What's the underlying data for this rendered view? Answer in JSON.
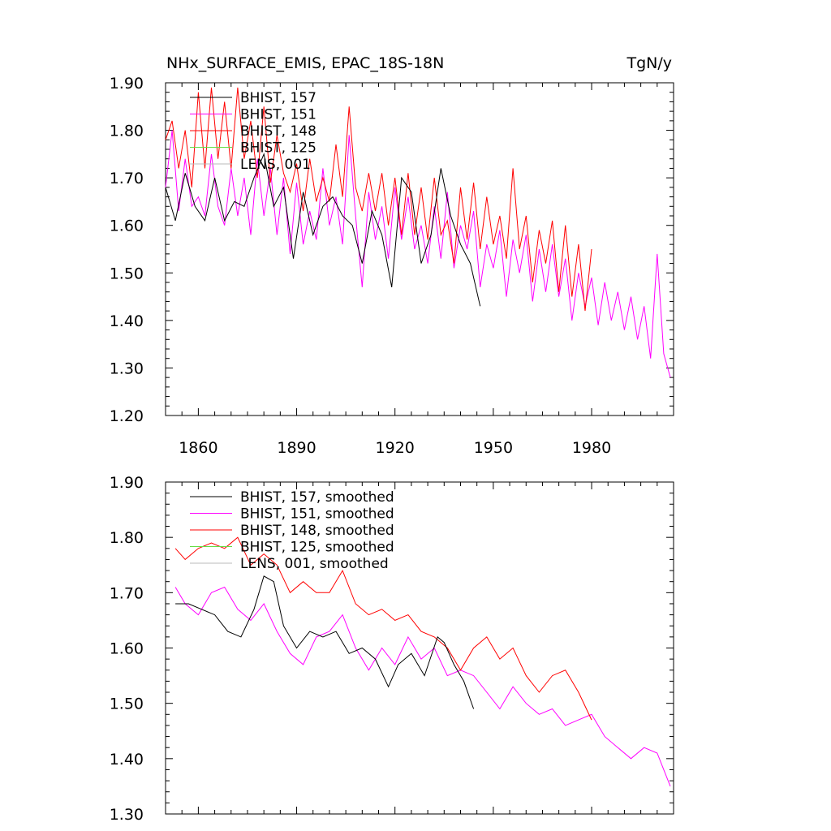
{
  "chart_data": [
    {
      "type": "line",
      "title": "NHx_SURFACE_EMIS, EPAC_18S-18N",
      "units": "TgN/y",
      "xlabel": "",
      "ylabel": "",
      "xlim": [
        1850,
        2005
      ],
      "ylim": [
        1.2,
        1.9
      ],
      "x_ticks": [
        1860,
        1890,
        1920,
        1950,
        1980
      ],
      "y_ticks": [
        1.2,
        1.3,
        1.4,
        1.5,
        1.6,
        1.7,
        1.8,
        1.9
      ],
      "y_tick_labels": [
        "1.20",
        "1.30",
        "1.40",
        "1.50",
        "1.60",
        "1.70",
        "1.80",
        "1.90"
      ],
      "legend_position": "top-left",
      "grid": false,
      "series": [
        {
          "name": "BHIST, 157",
          "color": "#000000",
          "x": [
            1850,
            1853,
            1856,
            1859,
            1862,
            1865,
            1868,
            1871,
            1874,
            1877,
            1880,
            1883,
            1886,
            1889,
            1892,
            1895,
            1898,
            1901,
            1904,
            1907,
            1910,
            1913,
            1916,
            1919,
            1922,
            1925,
            1928,
            1931,
            1934,
            1937,
            1940,
            1943,
            1946
          ],
          "values": [
            1.68,
            1.61,
            1.71,
            1.64,
            1.61,
            1.7,
            1.61,
            1.65,
            1.64,
            1.7,
            1.75,
            1.64,
            1.68,
            1.53,
            1.67,
            1.58,
            1.64,
            1.66,
            1.62,
            1.6,
            1.52,
            1.63,
            1.58,
            1.47,
            1.7,
            1.67,
            1.52,
            1.58,
            1.72,
            1.62,
            1.56,
            1.52,
            1.43
          ]
        },
        {
          "name": "BHIST, 151",
          "color": "#ff00ff",
          "x": [
            1850,
            1852,
            1854,
            1856,
            1858,
            1860,
            1862,
            1864,
            1866,
            1868,
            1870,
            1872,
            1874,
            1876,
            1878,
            1880,
            1882,
            1884,
            1886,
            1888,
            1890,
            1892,
            1894,
            1896,
            1898,
            1900,
            1902,
            1904,
            1906,
            1908,
            1910,
            1912,
            1914,
            1916,
            1918,
            1920,
            1922,
            1924,
            1926,
            1928,
            1930,
            1932,
            1934,
            1936,
            1938,
            1940,
            1942,
            1944,
            1946,
            1948,
            1950,
            1952,
            1954,
            1956,
            1958,
            1960,
            1962,
            1964,
            1966,
            1968,
            1970,
            1972,
            1974,
            1976,
            1978,
            1980,
            1982,
            1984,
            1986,
            1988,
            1990,
            1992,
            1994,
            1996,
            1998,
            2000,
            2002,
            2004
          ],
          "values": [
            1.68,
            1.8,
            1.63,
            1.74,
            1.64,
            1.66,
            1.62,
            1.75,
            1.64,
            1.6,
            1.72,
            1.62,
            1.7,
            1.58,
            1.74,
            1.62,
            1.72,
            1.58,
            1.7,
            1.54,
            1.69,
            1.56,
            1.63,
            1.57,
            1.72,
            1.6,
            1.66,
            1.56,
            1.79,
            1.62,
            1.47,
            1.67,
            1.57,
            1.64,
            1.53,
            1.68,
            1.57,
            1.66,
            1.55,
            1.6,
            1.52,
            1.64,
            1.53,
            1.67,
            1.51,
            1.6,
            1.55,
            1.63,
            1.47,
            1.56,
            1.51,
            1.59,
            1.45,
            1.57,
            1.5,
            1.58,
            1.44,
            1.55,
            1.46,
            1.56,
            1.45,
            1.53,
            1.4,
            1.5,
            1.43,
            1.49,
            1.39,
            1.48,
            1.4,
            1.46,
            1.38,
            1.45,
            1.36,
            1.43,
            1.32,
            1.54,
            1.33,
            1.28
          ]
        },
        {
          "name": "BHIST, 148",
          "color": "#ff0000",
          "x": [
            1850,
            1852,
            1854,
            1856,
            1858,
            1860,
            1862,
            1864,
            1866,
            1868,
            1870,
            1872,
            1874,
            1876,
            1878,
            1880,
            1882,
            1884,
            1886,
            1888,
            1890,
            1892,
            1894,
            1896,
            1898,
            1900,
            1902,
            1904,
            1906,
            1908,
            1910,
            1912,
            1914,
            1916,
            1918,
            1920,
            1922,
            1924,
            1926,
            1928,
            1930,
            1932,
            1934,
            1936,
            1938,
            1940,
            1942,
            1944,
            1946,
            1948,
            1950,
            1952,
            1954,
            1956,
            1958,
            1960,
            1962,
            1964,
            1966,
            1968,
            1970,
            1972,
            1974,
            1976,
            1978,
            1980
          ],
          "values": [
            1.78,
            1.82,
            1.72,
            1.8,
            1.68,
            1.88,
            1.72,
            1.89,
            1.74,
            1.86,
            1.72,
            1.89,
            1.74,
            1.82,
            1.7,
            1.85,
            1.69,
            1.79,
            1.71,
            1.67,
            1.73,
            1.63,
            1.74,
            1.65,
            1.7,
            1.65,
            1.77,
            1.66,
            1.85,
            1.68,
            1.63,
            1.71,
            1.63,
            1.71,
            1.6,
            1.7,
            1.58,
            1.71,
            1.58,
            1.68,
            1.57,
            1.7,
            1.58,
            1.61,
            1.52,
            1.68,
            1.57,
            1.69,
            1.55,
            1.66,
            1.56,
            1.62,
            1.53,
            1.72,
            1.55,
            1.62,
            1.48,
            1.59,
            1.52,
            1.61,
            1.46,
            1.6,
            1.45,
            1.56,
            1.42,
            1.55
          ]
        }
      ],
      "legend": [
        {
          "label": "BHIST, 157",
          "color": "#000000"
        },
        {
          "label": "BHIST, 151",
          "color": "#ff00ff"
        },
        {
          "label": "BHIST, 148",
          "color": "#ff0000"
        },
        {
          "label": "BHIST, 125",
          "color": "#66dd44"
        },
        {
          "label": "LENS, 001",
          "color": "#bbbbbb"
        }
      ]
    },
    {
      "type": "line",
      "title": "",
      "xlabel": "",
      "ylabel": "",
      "xlim": [
        1850,
        2005
      ],
      "ylim": [
        1.3,
        1.9
      ],
      "y_ticks": [
        1.3,
        1.4,
        1.5,
        1.6,
        1.7,
        1.8,
        1.9
      ],
      "y_tick_labels": [
        "1.30",
        "1.40",
        "1.50",
        "1.60",
        "1.70",
        "1.80",
        "1.90"
      ],
      "legend_position": "top-left",
      "grid": false,
      "series": [
        {
          "name": "BHIST, 157, smoothed",
          "color": "#000000",
          "x": [
            1853,
            1857,
            1861,
            1865,
            1869,
            1873,
            1877,
            1880,
            1883,
            1886,
            1890,
            1894,
            1898,
            1902,
            1906,
            1910,
            1914,
            1918,
            1921,
            1925,
            1929,
            1933,
            1935,
            1938,
            1941,
            1944
          ],
          "values": [
            1.68,
            1.68,
            1.67,
            1.66,
            1.63,
            1.62,
            1.67,
            1.73,
            1.72,
            1.64,
            1.6,
            1.63,
            1.62,
            1.63,
            1.59,
            1.6,
            1.58,
            1.53,
            1.57,
            1.59,
            1.55,
            1.62,
            1.61,
            1.57,
            1.54,
            1.49
          ]
        },
        {
          "name": "BHIST, 151, smoothed",
          "color": "#ff00ff",
          "x": [
            1853,
            1856,
            1860,
            1864,
            1868,
            1872,
            1876,
            1880,
            1884,
            1888,
            1892,
            1896,
            1900,
            1904,
            1908,
            1912,
            1916,
            1920,
            1924,
            1928,
            1932,
            1936,
            1940,
            1944,
            1948,
            1952,
            1956,
            1960,
            1964,
            1968,
            1972,
            1976,
            1980,
            1984,
            1988,
            1992,
            1996,
            2000,
            2004
          ],
          "values": [
            1.71,
            1.68,
            1.66,
            1.7,
            1.71,
            1.67,
            1.65,
            1.68,
            1.63,
            1.59,
            1.57,
            1.62,
            1.63,
            1.66,
            1.6,
            1.56,
            1.6,
            1.57,
            1.62,
            1.58,
            1.6,
            1.55,
            1.56,
            1.55,
            1.52,
            1.49,
            1.53,
            1.5,
            1.48,
            1.49,
            1.46,
            1.47,
            1.48,
            1.44,
            1.42,
            1.4,
            1.42,
            1.41,
            1.35
          ]
        },
        {
          "name": "BHIST, 148, smoothed",
          "color": "#ff0000",
          "x": [
            1853,
            1856,
            1860,
            1864,
            1868,
            1872,
            1876,
            1880,
            1884,
            1888,
            1892,
            1896,
            1900,
            1904,
            1908,
            1912,
            1916,
            1920,
            1924,
            1928,
            1932,
            1936,
            1940,
            1944,
            1948,
            1952,
            1956,
            1960,
            1964,
            1968,
            1972,
            1976,
            1980
          ],
          "values": [
            1.78,
            1.76,
            1.78,
            1.79,
            1.78,
            1.8,
            1.75,
            1.77,
            1.75,
            1.7,
            1.72,
            1.7,
            1.7,
            1.74,
            1.68,
            1.66,
            1.67,
            1.65,
            1.66,
            1.63,
            1.62,
            1.6,
            1.56,
            1.6,
            1.62,
            1.58,
            1.6,
            1.55,
            1.52,
            1.55,
            1.56,
            1.52,
            1.47
          ]
        }
      ],
      "legend": [
        {
          "label": "BHIST, 157, smoothed",
          "color": "#000000"
        },
        {
          "label": "BHIST, 151, smoothed",
          "color": "#ff00ff"
        },
        {
          "label": "BHIST, 148, smoothed",
          "color": "#ff0000"
        },
        {
          "label": "BHIST, 125, smoothed",
          "color": "#66dd44"
        },
        {
          "label": "LENS, 001, smoothed",
          "color": "#bbbbbb"
        }
      ]
    }
  ]
}
